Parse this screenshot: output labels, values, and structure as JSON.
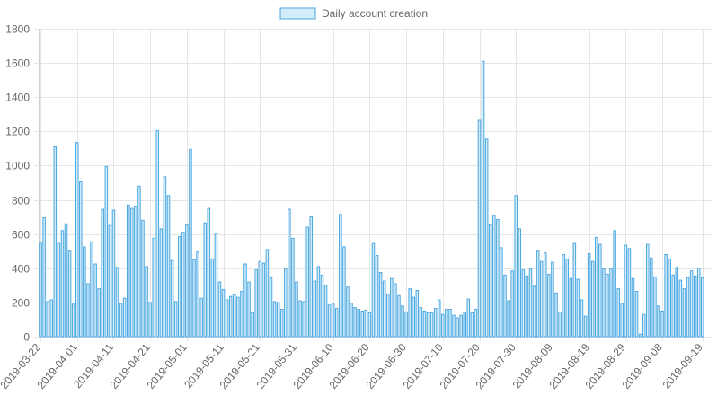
{
  "chart_data": {
    "type": "bar",
    "legend": {
      "label": "Daily account creation",
      "position": "top"
    },
    "colors": {
      "bar_fill": "#d3ebfa",
      "bar_stroke": "#4aa8e0",
      "grid": "#e6e6e6"
    },
    "ylim": [
      0,
      1800
    ],
    "y_ticks": [
      "0",
      "200",
      "400",
      "600",
      "800",
      "1000",
      "1200",
      "1400",
      "1600",
      "1800"
    ],
    "x_tick_labels": [
      "2019-03-22",
      "2019-04-01",
      "2019-04-11",
      "2019-04-21",
      "2019-05-01",
      "2019-05-11",
      "2019-05-21",
      "2019-05-31",
      "2019-06-10",
      "2019-06-20",
      "2019-06-30",
      "2019-07-10",
      "2019-07-20",
      "2019-07-30",
      "2019-08-09",
      "2019-08-19",
      "2019-08-29",
      "2019-09-08",
      "2019-09-19"
    ],
    "x_start": "2019-03-22",
    "x_end": "2019-09-21",
    "grid": true,
    "values": [
      550,
      695,
      205,
      215,
      1110,
      545,
      620,
      660,
      500,
      190,
      1135,
      905,
      525,
      310,
      555,
      425,
      280,
      745,
      995,
      650,
      740,
      405,
      195,
      225,
      770,
      750,
      760,
      880,
      680,
      410,
      200,
      575,
      1205,
      630,
      935,
      825,
      445,
      205,
      585,
      610,
      655,
      1095,
      450,
      495,
      225,
      665,
      750,
      455,
      600,
      320,
      275,
      215,
      235,
      245,
      230,
      265,
      425,
      320,
      140,
      390,
      440,
      430,
      510,
      345,
      205,
      200,
      160,
      395,
      745,
      575,
      320,
      210,
      205,
      640,
      700,
      325,
      410,
      360,
      300,
      185,
      190,
      165,
      715,
      525,
      290,
      195,
      170,
      160,
      150,
      155,
      140,
      545,
      475,
      375,
      325,
      250,
      340,
      310,
      240,
      180,
      145,
      280,
      230,
      270,
      170,
      150,
      140,
      140,
      165,
      215,
      130,
      160,
      160,
      125,
      110,
      125,
      145,
      220,
      140,
      160,
      1265,
      1610,
      1155,
      655,
      705,
      685,
      520,
      360,
      210,
      385,
      825,
      630,
      390,
      355,
      395,
      295,
      500,
      440,
      490,
      365,
      435,
      255,
      145,
      480,
      455,
      340,
      545,
      335,
      215,
      120,
      485,
      440,
      580,
      540,
      395,
      365,
      395,
      620,
      280,
      195,
      535,
      515,
      340,
      265,
      15,
      130,
      540,
      460,
      350,
      180,
      150,
      480,
      455,
      360,
      405,
      330,
      280,
      345,
      385,
      355,
      400,
      345
    ]
  }
}
